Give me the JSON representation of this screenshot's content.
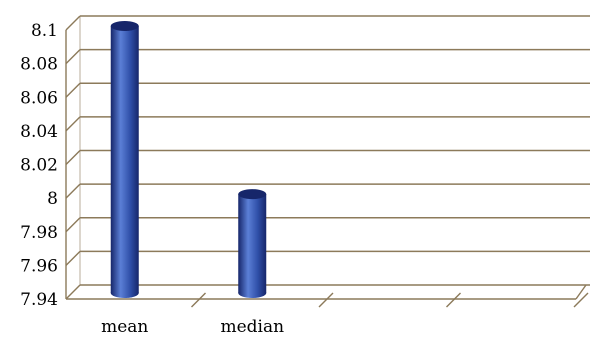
{
  "chart_data": {
    "type": "bar",
    "style": "3d-cylinder",
    "title": "",
    "xlabel": "",
    "ylabel": "",
    "categories": [
      "mean",
      "median",
      "",
      ""
    ],
    "values": [
      8.1,
      8.0,
      null,
      null
    ],
    "ylim": [
      7.94,
      8.1
    ],
    "yticks": [
      "8.1",
      "8.08",
      "8.06",
      "8.04",
      "8.02",
      "8",
      "7.98",
      "7.96",
      "7.94"
    ],
    "grid": true,
    "legend": "none",
    "colors": {
      "bar": "#2f4fa8",
      "bar_dark": "#16266a",
      "bar_light": "#5b7fd6",
      "grid": "#8c7a5a",
      "axis": "#8c7a5a"
    }
  }
}
